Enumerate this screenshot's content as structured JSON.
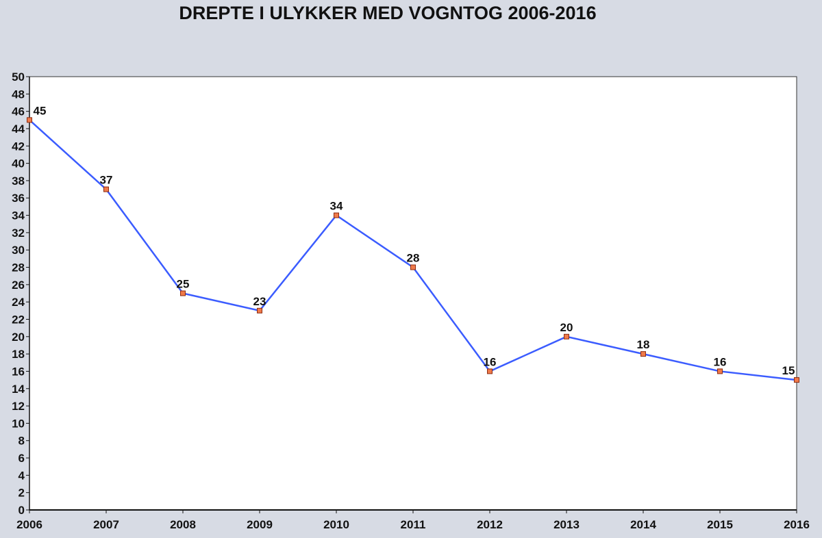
{
  "chart_data": {
    "type": "line",
    "title": "DREPTE I ULYKKER MED VOGNTOG 2006-2016",
    "xlabel": "",
    "ylabel": "",
    "categories": [
      "2006",
      "2007",
      "2008",
      "2009",
      "2010",
      "2011",
      "2012",
      "2013",
      "2014",
      "2015",
      "2016"
    ],
    "series": [
      {
        "values": [
          45,
          37,
          25,
          23,
          34,
          28,
          16,
          20,
          18,
          16,
          15
        ]
      }
    ],
    "ylim": [
      0,
      50
    ],
    "ytick_step": 2,
    "grid": false,
    "legend": "none",
    "data_labels": true,
    "colors": {
      "line": "#3b5cff",
      "marker_fill": "#f07a4a",
      "marker_stroke": "#8a2a10",
      "background": "#d7dbe4",
      "plot_bg": "#ffffff"
    }
  }
}
